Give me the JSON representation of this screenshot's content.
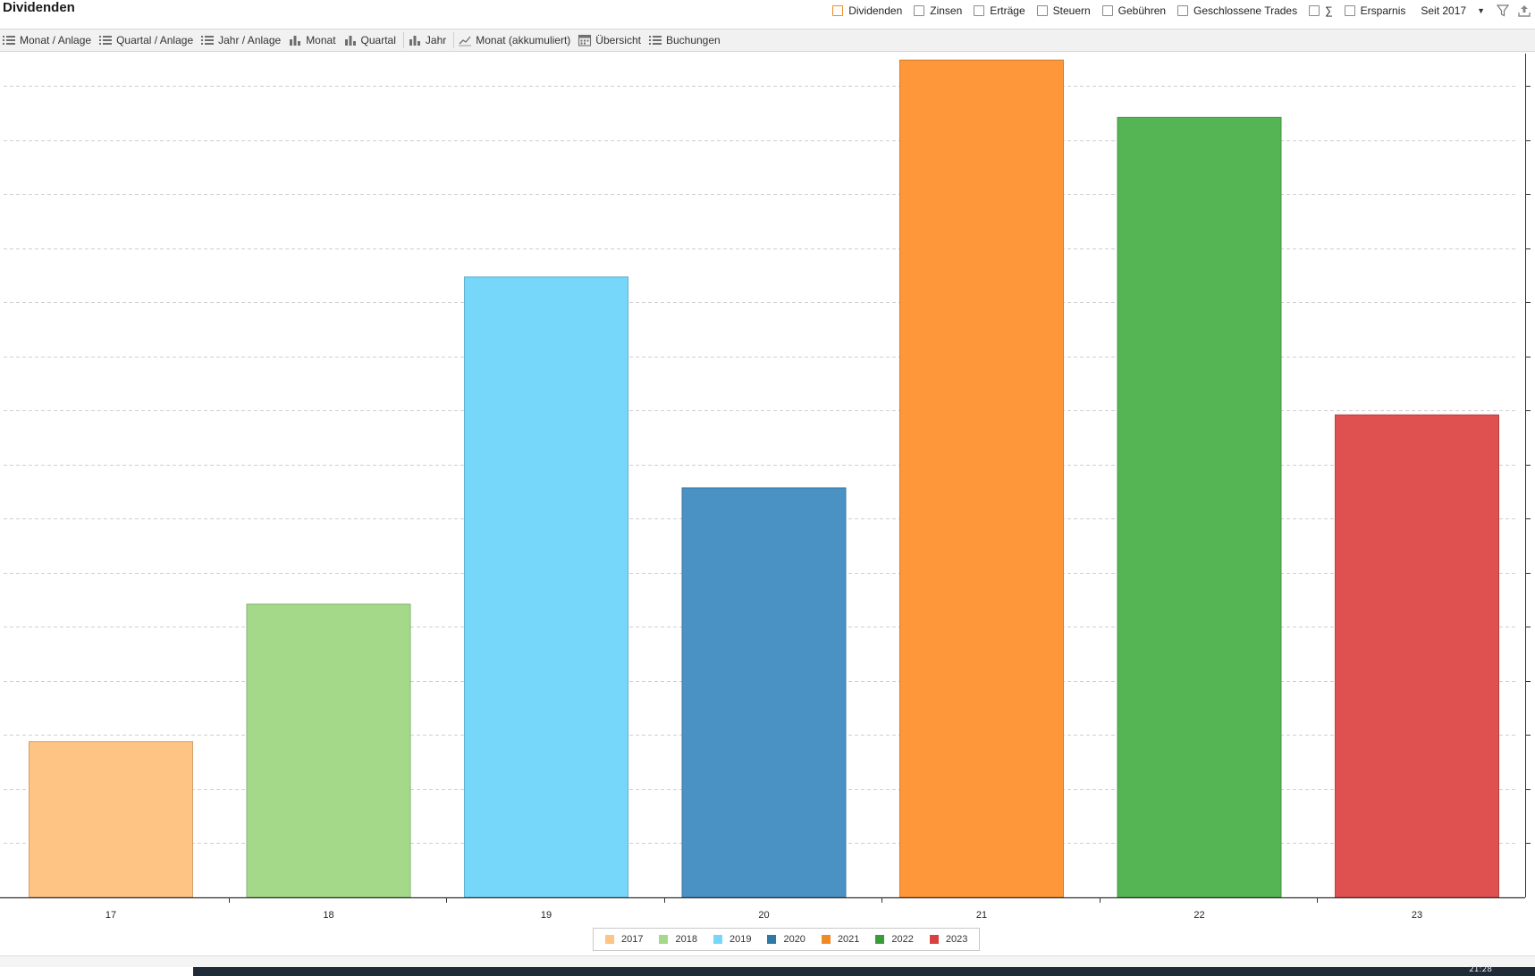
{
  "header": {
    "title": "Dividenden",
    "filters": [
      {
        "label": "Dividenden",
        "checked": true
      },
      {
        "label": "Zinsen",
        "checked": false
      },
      {
        "label": "Erträge",
        "checked": false
      },
      {
        "label": "Steuern",
        "checked": false
      },
      {
        "label": "Gebühren",
        "checked": false
      },
      {
        "label": "Geschlossene Trades",
        "checked": false
      },
      {
        "label": "∑",
        "checked": false
      },
      {
        "label": "Ersparnis",
        "checked": false
      }
    ],
    "period": "Seit 2017",
    "icons": [
      "filter-icon",
      "export-icon"
    ]
  },
  "toolbar": {
    "items": [
      {
        "label": "Monat / Anlage",
        "icon": "list-icon"
      },
      {
        "label": "Quartal / Anlage",
        "icon": "list-icon"
      },
      {
        "label": "Jahr / Anlage",
        "icon": "list-icon"
      },
      {
        "label": "Monat",
        "icon": "bar-chart-icon"
      },
      {
        "label": "Quartal",
        "icon": "bar-chart-icon"
      },
      {
        "label": "Jahr",
        "icon": "bar-chart-icon"
      },
      {
        "label": "Monat (akkumuliert)",
        "icon": "line-chart-icon"
      },
      {
        "label": "Übersicht",
        "icon": "calendar-icon"
      },
      {
        "label": "Buchungen",
        "icon": "list-icon"
      }
    ]
  },
  "chart_data": {
    "type": "bar",
    "categories": [
      "17",
      "18",
      "19",
      "20",
      "21",
      "22",
      "23"
    ],
    "values": [
      2.88,
      5.42,
      11.47,
      7.57,
      15.48,
      14.42,
      8.92
    ],
    "colors": [
      "#fdc484",
      "#a4d98a",
      "#76d7fb",
      "#4a91c4",
      "#fe9739",
      "#55b453",
      "#df5050"
    ],
    "ylim": [
      0,
      15.5
    ],
    "y_tick_step": 1,
    "y_tick_labels_visible": false,
    "grid": true,
    "legend_position": "bottom-center",
    "legend": [
      {
        "name": "2017",
        "color": "#fdc484"
      },
      {
        "name": "2018",
        "color": "#a4d98a"
      },
      {
        "name": "2019",
        "color": "#76d7fb"
      },
      {
        "name": "2020",
        "color": "#2f79a8"
      },
      {
        "name": "2021",
        "color": "#f08a24"
      },
      {
        "name": "2022",
        "color": "#3a9b3a"
      },
      {
        "name": "2023",
        "color": "#d94040"
      }
    ]
  },
  "taskbar": {
    "time": "21:28"
  }
}
